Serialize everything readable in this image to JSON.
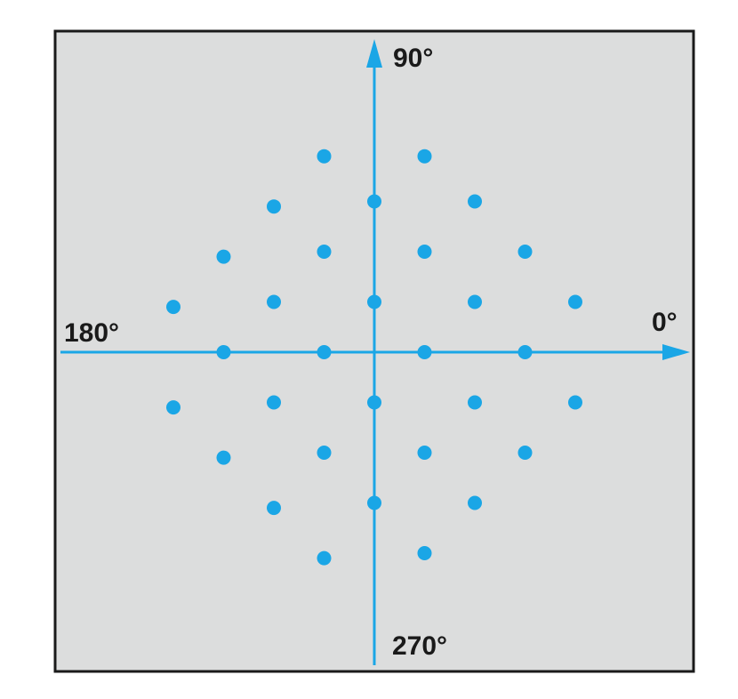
{
  "axis_labels": {
    "right": "0°",
    "top": "90°",
    "left": "180°",
    "bottom": "270°"
  },
  "colors": {
    "background": "#dcdddd",
    "frame": "#1a1a1a",
    "accent": "#1aa6e6",
    "text": "#1a1a1a"
  },
  "chart_data": {
    "type": "scatter",
    "description_of_axes": "I/Q constellation with axes labeled by phase angle",
    "series": [
      {
        "points": [
          [
            -1.0,
            3.9
          ],
          [
            1.0,
            3.9
          ],
          [
            -2.0,
            2.9
          ],
          [
            0.0,
            3.0
          ],
          [
            2.0,
            3.0
          ],
          [
            -3.0,
            1.9
          ],
          [
            -1.0,
            2.0
          ],
          [
            1.0,
            2.0
          ],
          [
            3.0,
            2.0
          ],
          [
            -4.0,
            0.9
          ],
          [
            -2.0,
            1.0
          ],
          [
            0.0,
            1.0
          ],
          [
            2.0,
            1.0
          ],
          [
            4.0,
            1.0
          ],
          [
            -3.0,
            0.0
          ],
          [
            -1.0,
            0.0
          ],
          [
            1.0,
            0.0
          ],
          [
            3.0,
            0.0
          ],
          [
            -4.0,
            -1.1
          ],
          [
            -2.0,
            -1.0
          ],
          [
            0.0,
            -1.0
          ],
          [
            2.0,
            -1.0
          ],
          [
            4.0,
            -1.0
          ],
          [
            -3.0,
            -2.1
          ],
          [
            -1.0,
            -2.0
          ],
          [
            1.0,
            -2.0
          ],
          [
            3.0,
            -2.0
          ],
          [
            -2.0,
            -3.1
          ],
          [
            0.0,
            -3.0
          ],
          [
            2.0,
            -3.0
          ],
          [
            -1.0,
            -4.1
          ],
          [
            1.0,
            -4.0
          ]
        ]
      }
    ]
  }
}
